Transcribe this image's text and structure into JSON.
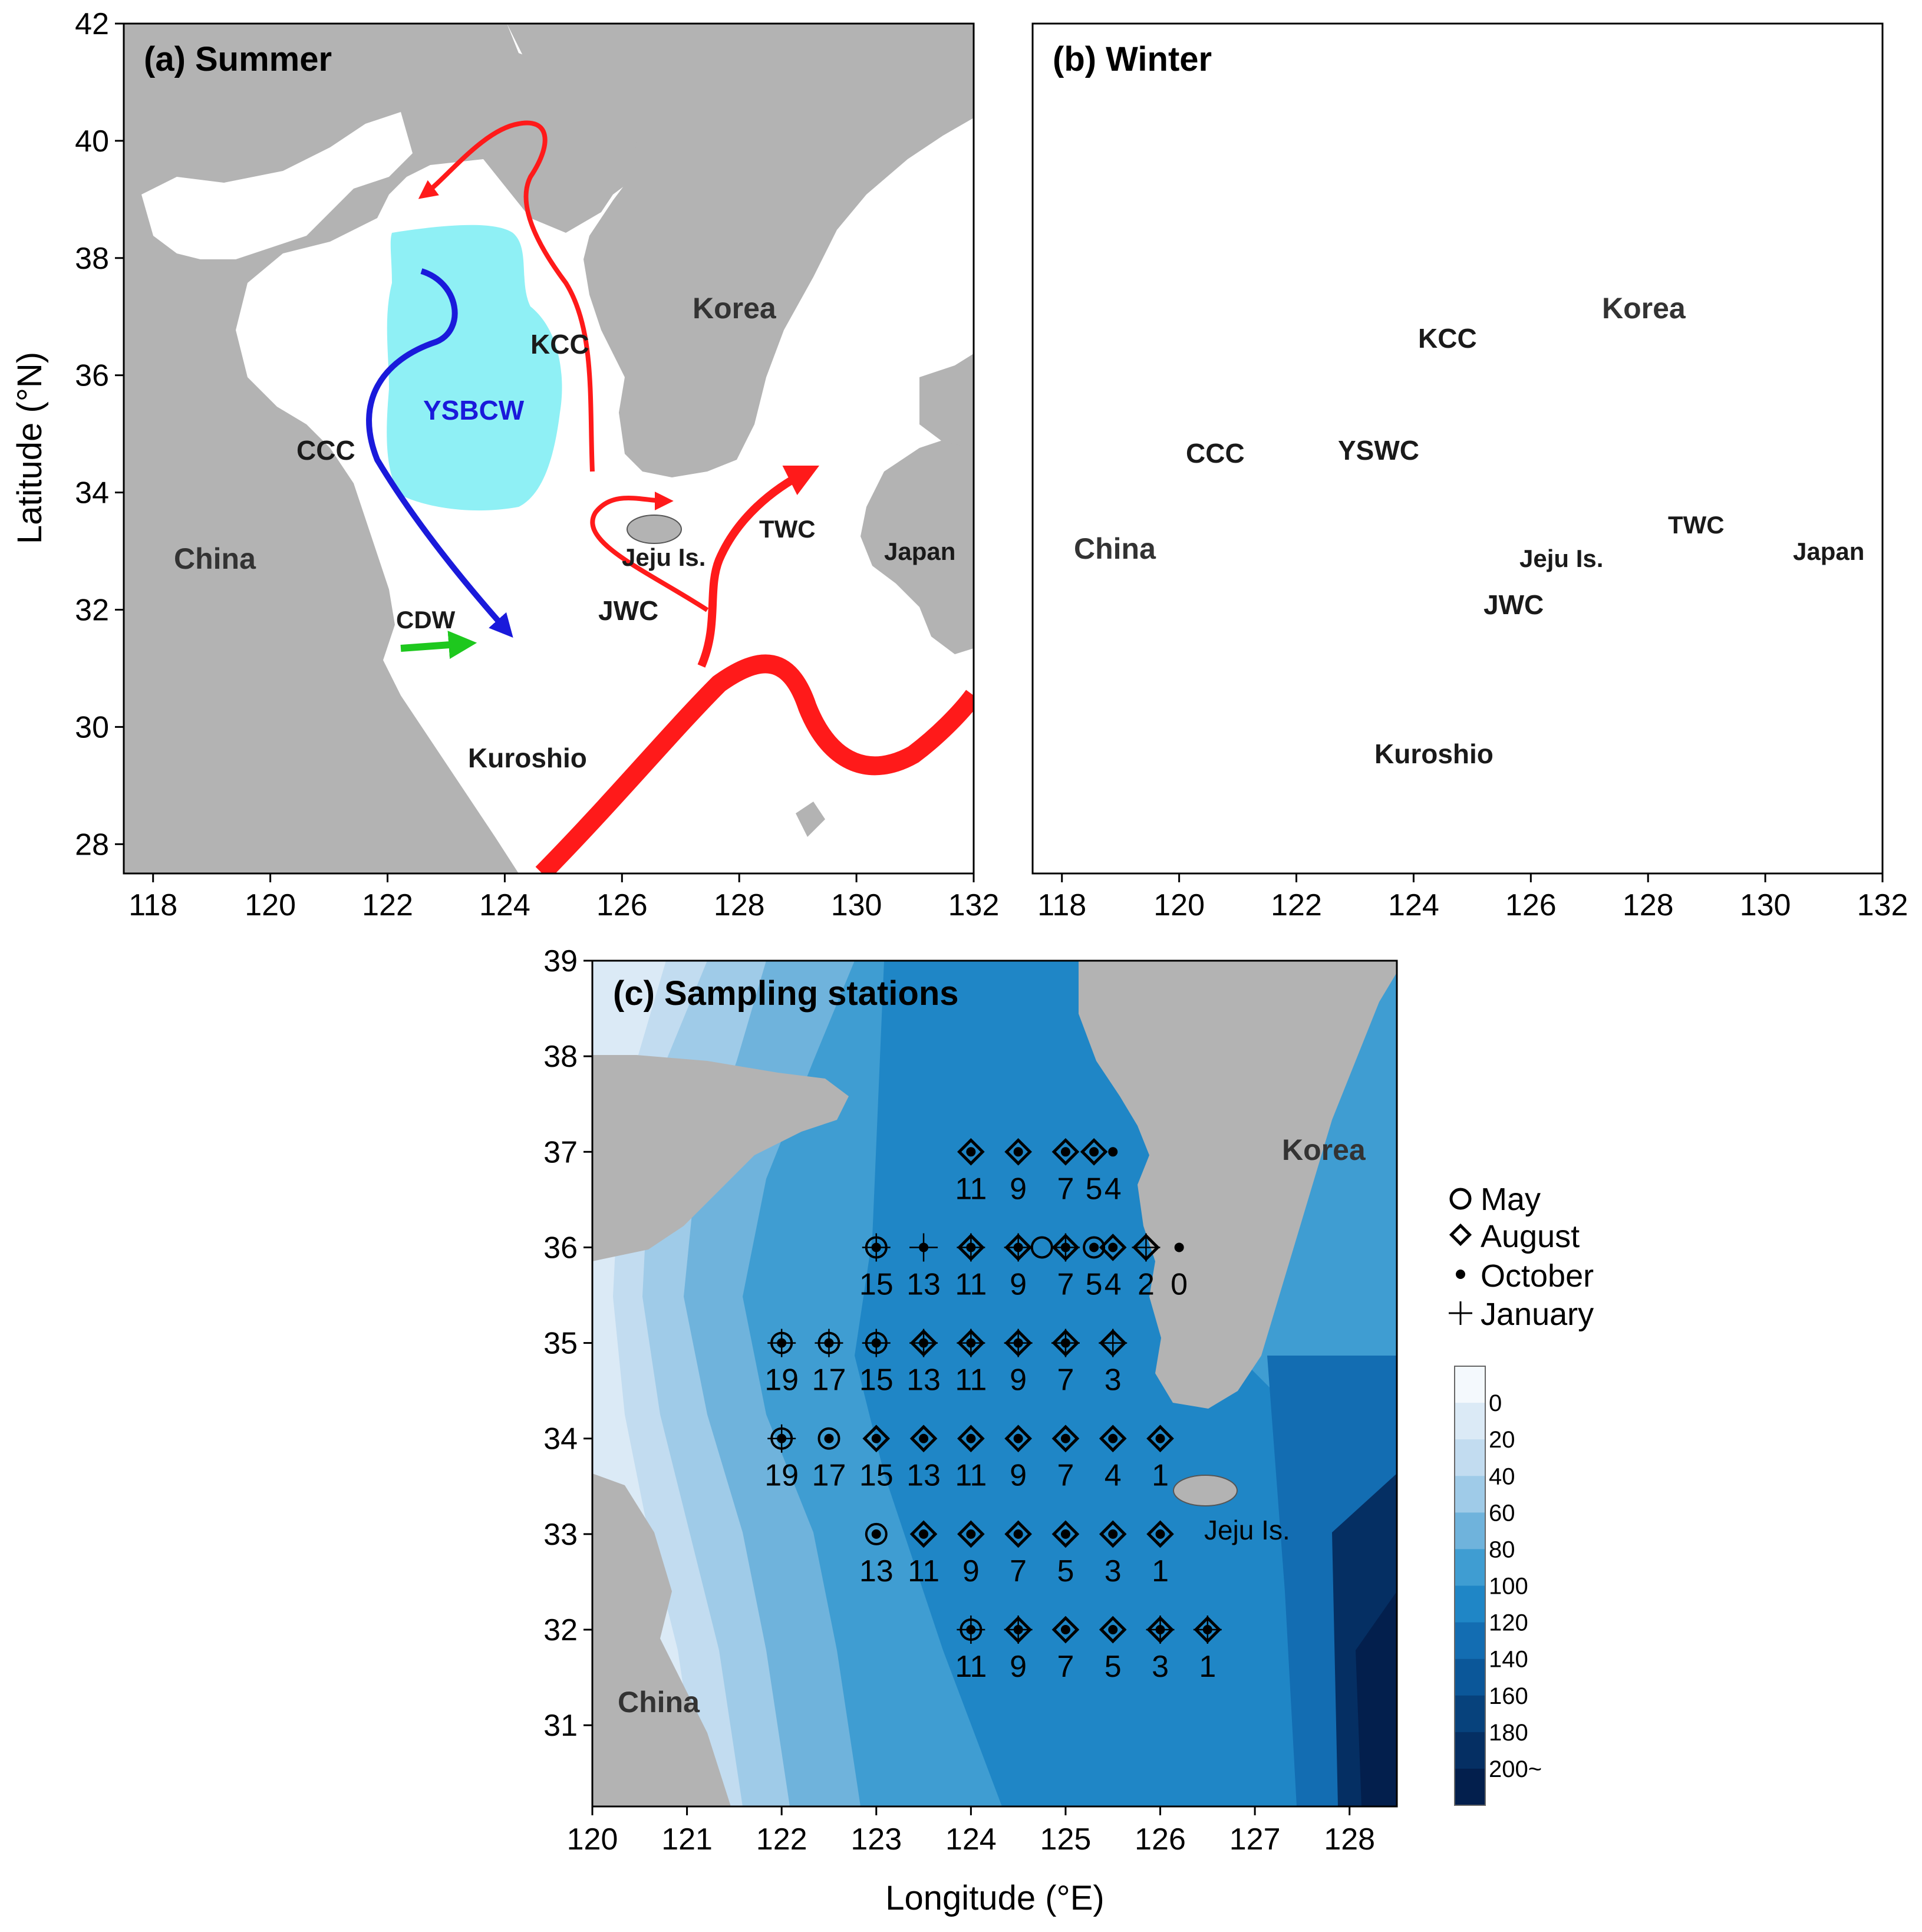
{
  "panels": {
    "a": {
      "title": "(a) Summer",
      "labels": {
        "kcc": "KCC",
        "ccc": "CCC",
        "ysbcw": "YSBCW",
        "cdw": "CDW",
        "jwc": "JWC",
        "twc": "TWC",
        "kuroshio": "Kuroshio",
        "jeju": "Jeju Is.",
        "china": "China",
        "korea": "Korea",
        "japan": "Japan"
      }
    },
    "b": {
      "title": "(b) Winter",
      "labels": {
        "kcc": "KCC",
        "ccc": "CCC",
        "yswc": "YSWC",
        "jwc": "JWC",
        "twc": "TWC",
        "kuroshio": "Kuroshio",
        "jeju": "Jeju Is.",
        "china": "China",
        "korea": "Korea",
        "japan": "Japan"
      }
    },
    "c": {
      "title": "(c) Sampling stations",
      "labels": {
        "korea": "Korea",
        "china": "China",
        "jeju": "Jeju Is."
      }
    }
  },
  "axes": {
    "top_lon_ticks": [
      "118",
      "120",
      "122",
      "124",
      "126",
      "128",
      "130",
      "132"
    ],
    "top_lat_ticks": [
      "28",
      "30",
      "32",
      "34",
      "36",
      "38",
      "40",
      "42"
    ],
    "bottom_lon_ticks": [
      "120",
      "121",
      "122",
      "123",
      "124",
      "125",
      "126",
      "127",
      "128"
    ],
    "bottom_lat_ticks": [
      "31",
      "32",
      "33",
      "34",
      "35",
      "36",
      "37",
      "38",
      "39"
    ],
    "ylabel": "Latitude (°N)",
    "xlabel": "Longitude (°E)"
  },
  "legend": {
    "may": "May",
    "august": "August",
    "october": "October",
    "january": "January"
  },
  "colorbar": {
    "labels": [
      "0",
      "20",
      "40",
      "60",
      "80",
      "100",
      "120",
      "140",
      "160",
      "180",
      "200~"
    ],
    "colors": [
      "#f4f9fd",
      "#dbeaf6",
      "#c2dcf0",
      "#9fcbe8",
      "#6fb3dc",
      "#3f9dd2",
      "#1f86c6",
      "#136db2",
      "#0b5799",
      "#07427c",
      "#052f63",
      "#031f4d"
    ]
  },
  "colors": {
    "land": "#b3b3b3",
    "sea": "#ffffff",
    "warm": "#ff1a1a",
    "cold": "#1a1adb",
    "cdw": "#1ec81e",
    "ysbcw": "#8ff0f5"
  },
  "stations": [
    {
      "lat": 37,
      "lon": 124,
      "num": "11",
      "m": [
        "aug",
        "oct"
      ]
    },
    {
      "lat": 37,
      "lon": 124.5,
      "num": "9",
      "m": [
        "aug",
        "oct"
      ]
    },
    {
      "lat": 37,
      "lon": 125,
      "num": "7",
      "m": [
        "aug",
        "oct"
      ]
    },
    {
      "lat": 37,
      "lon": 125.3,
      "num": "5",
      "m": [
        "aug",
        "oct"
      ]
    },
    {
      "lat": 37,
      "lon": 125.5,
      "num": "4",
      "m": [
        "oct"
      ]
    },
    {
      "lat": 36,
      "lon": 123,
      "num": "15",
      "m": [
        "may",
        "oct",
        "jan"
      ]
    },
    {
      "lat": 36,
      "lon": 123.5,
      "num": "13",
      "m": [
        "oct",
        "jan"
      ]
    },
    {
      "lat": 36,
      "lon": 124,
      "num": "11",
      "m": [
        "aug",
        "oct",
        "jan"
      ]
    },
    {
      "lat": 36,
      "lon": 124.5,
      "num": "9",
      "m": [
        "aug",
        "oct",
        "jan"
      ]
    },
    {
      "lat": 36,
      "lon": 124.75,
      "num": "",
      "m": [
        "may"
      ]
    },
    {
      "lat": 36,
      "lon": 125,
      "num": "7",
      "m": [
        "aug",
        "oct",
        "jan"
      ]
    },
    {
      "lat": 36,
      "lon": 125.3,
      "num": "5",
      "m": [
        "may",
        "oct"
      ]
    },
    {
      "lat": 36,
      "lon": 125.5,
      "num": "4",
      "m": [
        "aug",
        "oct"
      ]
    },
    {
      "lat": 36,
      "lon": 125.85,
      "num": "2",
      "m": [
        "aug",
        "jan"
      ]
    },
    {
      "lat": 36,
      "lon": 126.2,
      "num": "0",
      "m": [
        "oct"
      ]
    },
    {
      "lat": 35,
      "lon": 122,
      "num": "19",
      "m": [
        "may",
        "oct",
        "jan"
      ]
    },
    {
      "lat": 35,
      "lon": 122.5,
      "num": "17",
      "m": [
        "may",
        "oct",
        "jan"
      ]
    },
    {
      "lat": 35,
      "lon": 123,
      "num": "15",
      "m": [
        "may",
        "oct",
        "jan"
      ]
    },
    {
      "lat": 35,
      "lon": 123.5,
      "num": "13",
      "m": [
        "aug",
        "oct",
        "jan"
      ]
    },
    {
      "lat": 35,
      "lon": 124,
      "num": "11",
      "m": [
        "aug",
        "oct",
        "jan"
      ]
    },
    {
      "lat": 35,
      "lon": 124.5,
      "num": "9",
      "m": [
        "aug",
        "oct",
        "jan"
      ]
    },
    {
      "lat": 35,
      "lon": 125,
      "num": "7",
      "m": [
        "aug",
        "oct",
        "jan"
      ]
    },
    {
      "lat": 35,
      "lon": 125.5,
      "num": "3",
      "m": [
        "aug",
        "jan"
      ]
    },
    {
      "lat": 34,
      "lon": 122,
      "num": "19",
      "m": [
        "may",
        "oct",
        "jan"
      ]
    },
    {
      "lat": 34,
      "lon": 122.5,
      "num": "17",
      "m": [
        "may",
        "oct"
      ]
    },
    {
      "lat": 34,
      "lon": 123,
      "num": "15",
      "m": [
        "aug",
        "oct"
      ]
    },
    {
      "lat": 34,
      "lon": 123.5,
      "num": "13",
      "m": [
        "aug",
        "oct"
      ]
    },
    {
      "lat": 34,
      "lon": 124,
      "num": "11",
      "m": [
        "aug",
        "oct"
      ]
    },
    {
      "lat": 34,
      "lon": 124.5,
      "num": "9",
      "m": [
        "aug",
        "oct"
      ]
    },
    {
      "lat": 34,
      "lon": 125,
      "num": "7",
      "m": [
        "aug",
        "oct"
      ]
    },
    {
      "lat": 34,
      "lon": 125.5,
      "num": "4",
      "m": [
        "aug",
        "oct"
      ]
    },
    {
      "lat": 34,
      "lon": 126,
      "num": "1",
      "m": [
        "aug",
        "oct"
      ]
    },
    {
      "lat": 33,
      "lon": 123,
      "num": "13",
      "m": [
        "may",
        "oct"
      ]
    },
    {
      "lat": 33,
      "lon": 123.5,
      "num": "11",
      "m": [
        "aug",
        "oct"
      ]
    },
    {
      "lat": 33,
      "lon": 124,
      "num": "9",
      "m": [
        "aug",
        "oct"
      ]
    },
    {
      "lat": 33,
      "lon": 124.5,
      "num": "7",
      "m": [
        "aug",
        "oct"
      ]
    },
    {
      "lat": 33,
      "lon": 125,
      "num": "5",
      "m": [
        "aug",
        "oct"
      ]
    },
    {
      "lat": 33,
      "lon": 125.5,
      "num": "3",
      "m": [
        "aug",
        "oct"
      ]
    },
    {
      "lat": 33,
      "lon": 126,
      "num": "1",
      "m": [
        "aug",
        "oct"
      ]
    },
    {
      "lat": 32,
      "lon": 124,
      "num": "11",
      "m": [
        "may",
        "oct",
        "jan"
      ]
    },
    {
      "lat": 32,
      "lon": 124.5,
      "num": "9",
      "m": [
        "aug",
        "oct",
        "jan"
      ]
    },
    {
      "lat": 32,
      "lon": 125,
      "num": "7",
      "m": [
        "aug",
        "oct"
      ]
    },
    {
      "lat": 32,
      "lon": 125.5,
      "num": "5",
      "m": [
        "aug",
        "oct"
      ]
    },
    {
      "lat": 32,
      "lon": 126,
      "num": "3",
      "m": [
        "aug",
        "oct",
        "jan"
      ]
    },
    {
      "lat": 32,
      "lon": 126.5,
      "num": "1",
      "m": [
        "aug",
        "oct",
        "jan"
      ]
    }
  ]
}
